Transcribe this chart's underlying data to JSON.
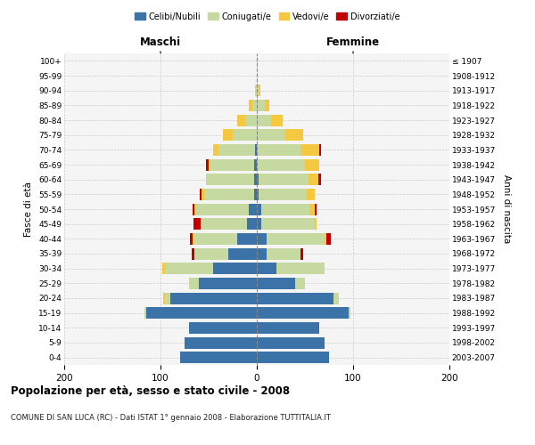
{
  "age_groups": [
    "0-4",
    "5-9",
    "10-14",
    "15-19",
    "20-24",
    "25-29",
    "30-34",
    "35-39",
    "40-44",
    "45-49",
    "50-54",
    "55-59",
    "60-64",
    "65-69",
    "70-74",
    "75-79",
    "80-84",
    "85-89",
    "90-94",
    "95-99",
    "100+"
  ],
  "birth_years": [
    "2003-2007",
    "1998-2002",
    "1993-1997",
    "1988-1992",
    "1983-1987",
    "1978-1982",
    "1973-1977",
    "1968-1972",
    "1963-1967",
    "1958-1962",
    "1953-1957",
    "1948-1952",
    "1943-1947",
    "1938-1942",
    "1933-1937",
    "1928-1932",
    "1923-1927",
    "1918-1922",
    "1913-1917",
    "1908-1912",
    "≤ 1907"
  ],
  "maschi": {
    "celibi": [
      80,
      75,
      70,
      115,
      90,
      60,
      45,
      30,
      20,
      10,
      8,
      3,
      3,
      3,
      2,
      0,
      0,
      0,
      0,
      0,
      0
    ],
    "coniugati": [
      0,
      0,
      0,
      2,
      5,
      10,
      50,
      35,
      45,
      48,
      55,
      52,
      50,
      45,
      38,
      25,
      12,
      5,
      2,
      0,
      0
    ],
    "vedovi": [
      0,
      0,
      0,
      0,
      2,
      0,
      3,
      0,
      2,
      0,
      2,
      2,
      0,
      2,
      5,
      10,
      8,
      3,
      0,
      0,
      0
    ],
    "divorziati": [
      0,
      0,
      0,
      0,
      0,
      0,
      0,
      3,
      2,
      8,
      2,
      2,
      0,
      3,
      0,
      0,
      0,
      0,
      0,
      0,
      0
    ]
  },
  "femmine": {
    "nubili": [
      75,
      70,
      65,
      95,
      80,
      40,
      20,
      10,
      10,
      5,
      5,
      2,
      2,
      0,
      0,
      0,
      0,
      0,
      0,
      0,
      0
    ],
    "coniugate": [
      0,
      0,
      0,
      2,
      5,
      10,
      50,
      35,
      60,
      55,
      50,
      50,
      52,
      50,
      45,
      30,
      15,
      8,
      2,
      0,
      0
    ],
    "vedove": [
      0,
      0,
      0,
      0,
      0,
      0,
      0,
      0,
      2,
      2,
      5,
      8,
      10,
      15,
      20,
      18,
      12,
      5,
      2,
      0,
      0
    ],
    "divorziate": [
      0,
      0,
      0,
      0,
      0,
      0,
      0,
      3,
      5,
      0,
      2,
      0,
      3,
      0,
      2,
      0,
      0,
      0,
      0,
      0,
      0
    ]
  },
  "colors": {
    "celibi": "#3B72A8",
    "coniugati": "#C5D9A0",
    "vedovi": "#F5C842",
    "divorziati": "#C00000"
  },
  "xlim": 200,
  "title": "Popolazione per età, sesso e stato civile - 2008",
  "subtitle": "COMUNE DI SAN LUCA (RC) - Dati ISTAT 1° gennaio 2008 - Elaborazione TUTTITALIA.IT",
  "ylabel": "Fasce di età",
  "ylabel_right": "Anni di nascita",
  "header_maschi": "Maschi",
  "header_femmine": "Femmine",
  "legend_labels": [
    "Celibi/Nubili",
    "Coniugati/e",
    "Vedovi/e",
    "Divorziati/e"
  ],
  "bg_color": "#FFFFFF",
  "plot_bg_color": "#F5F5F5"
}
